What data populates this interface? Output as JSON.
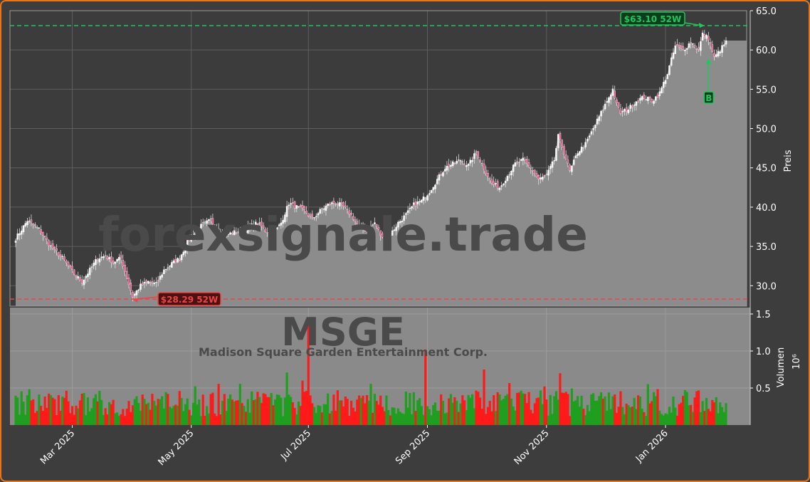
{
  "chart_data": {
    "type": "candlestick",
    "ticker": "MSGE",
    "company": "Madison Square Garden Entertainment Corp.",
    "watermark": "forexsignale.trade",
    "ylabel": "Preis",
    "volume_label": "Volumen",
    "volume_exponent": "10⁶",
    "ylim": [
      27.4,
      65.0
    ],
    "volume_ylim": [
      0,
      1.5
    ],
    "y_ticks": [
      "30.0",
      "35.0",
      "40.0",
      "45.0",
      "50.0",
      "55.0",
      "60.0",
      "65.0"
    ],
    "volume_ticks": [
      "0.5",
      "1.0",
      "1.5"
    ],
    "x_ticks": [
      "Mar 2025",
      "May 2025",
      "Jul 2025",
      "Sep 2025",
      "Nov 2025",
      "Jan 2026"
    ],
    "grid": true,
    "high_52w": {
      "value": 63.1,
      "label": "$63.10 52W",
      "color": "#22c55e"
    },
    "low_52w": {
      "value": 28.29,
      "label": "$28.29 52W",
      "color": "#ef4444"
    },
    "signal": {
      "label": "B",
      "color": "#22c55e"
    },
    "up_color": "#1f9e1f",
    "down_color": "#ff1a1a",
    "close_anchors": [
      [
        0,
        36.0
      ],
      [
        6,
        38.3
      ],
      [
        12,
        37.2
      ],
      [
        18,
        35.0
      ],
      [
        24,
        33.5
      ],
      [
        30,
        31.5
      ],
      [
        34,
        30.5
      ],
      [
        38,
        32.0
      ],
      [
        42,
        33.5
      ],
      [
        46,
        33.8
      ],
      [
        50,
        33.0
      ],
      [
        54,
        33.5
      ],
      [
        57,
        31.0
      ],
      [
        60,
        28.6
      ],
      [
        64,
        30.0
      ],
      [
        68,
        30.5
      ],
      [
        72,
        30.2
      ],
      [
        76,
        32.0
      ],
      [
        80,
        32.8
      ],
      [
        84,
        33.5
      ],
      [
        88,
        35.5
      ],
      [
        92,
        37.0
      ],
      [
        96,
        37.8
      ],
      [
        100,
        38.3
      ],
      [
        104,
        37.0
      ],
      [
        108,
        36.5
      ],
      [
        112,
        36.8
      ],
      [
        116,
        37.0
      ],
      [
        120,
        37.5
      ],
      [
        124,
        38.0
      ],
      [
        128,
        37.0
      ],
      [
        132,
        36.5
      ],
      [
        136,
        38.0
      ],
      [
        140,
        40.5
      ],
      [
        144,
        40.0
      ],
      [
        148,
        39.5
      ],
      [
        152,
        38.5
      ],
      [
        156,
        39.5
      ],
      [
        160,
        40.3
      ],
      [
        164,
        40.6
      ],
      [
        168,
        40.0
      ],
      [
        172,
        39.0
      ],
      [
        176,
        37.5
      ],
      [
        180,
        37.0
      ],
      [
        184,
        38.0
      ],
      [
        188,
        36.0
      ],
      [
        192,
        36.5
      ],
      [
        196,
        38.0
      ],
      [
        200,
        39.0
      ],
      [
        204,
        40.3
      ],
      [
        208,
        40.8
      ],
      [
        212,
        42.0
      ],
      [
        216,
        43.5
      ],
      [
        220,
        45.0
      ],
      [
        224,
        45.5
      ],
      [
        228,
        46.0
      ],
      [
        232,
        45.3
      ],
      [
        236,
        47.0
      ],
      [
        240,
        45.0
      ],
      [
        244,
        43.0
      ],
      [
        248,
        42.5
      ],
      [
        252,
        44.0
      ],
      [
        256,
        45.5
      ],
      [
        260,
        46.0
      ],
      [
        264,
        45.0
      ],
      [
        268,
        43.5
      ],
      [
        272,
        44.0
      ],
      [
        276,
        46.0
      ],
      [
        278,
        49.0
      ],
      [
        281,
        47.0
      ],
      [
        284,
        44.5
      ],
      [
        288,
        47.0
      ],
      [
        292,
        48.0
      ],
      [
        296,
        50.0
      ],
      [
        300,
        52.0
      ],
      [
        304,
        54.0
      ],
      [
        306,
        55.0
      ],
      [
        308,
        53.0
      ],
      [
        310,
        52.0
      ],
      [
        314,
        52.5
      ],
      [
        318,
        53.5
      ],
      [
        322,
        54.0
      ],
      [
        326,
        53.5
      ],
      [
        330,
        54.5
      ],
      [
        334,
        57.0
      ],
      [
        338,
        60.5
      ],
      [
        342,
        60.0
      ],
      [
        346,
        61.0
      ],
      [
        350,
        60.0
      ],
      [
        352,
        62.0
      ],
      [
        355,
        61.5
      ],
      [
        358,
        59.0
      ],
      [
        361,
        60.0
      ],
      [
        364,
        61.0
      ]
    ],
    "volume_spikes": [
      [
        150,
        1.4
      ],
      [
        139,
        0.71
      ],
      [
        210,
        1.02
      ],
      [
        240,
        0.75
      ],
      [
        279,
        0.7
      ],
      [
        139,
        0.71
      ]
    ]
  }
}
